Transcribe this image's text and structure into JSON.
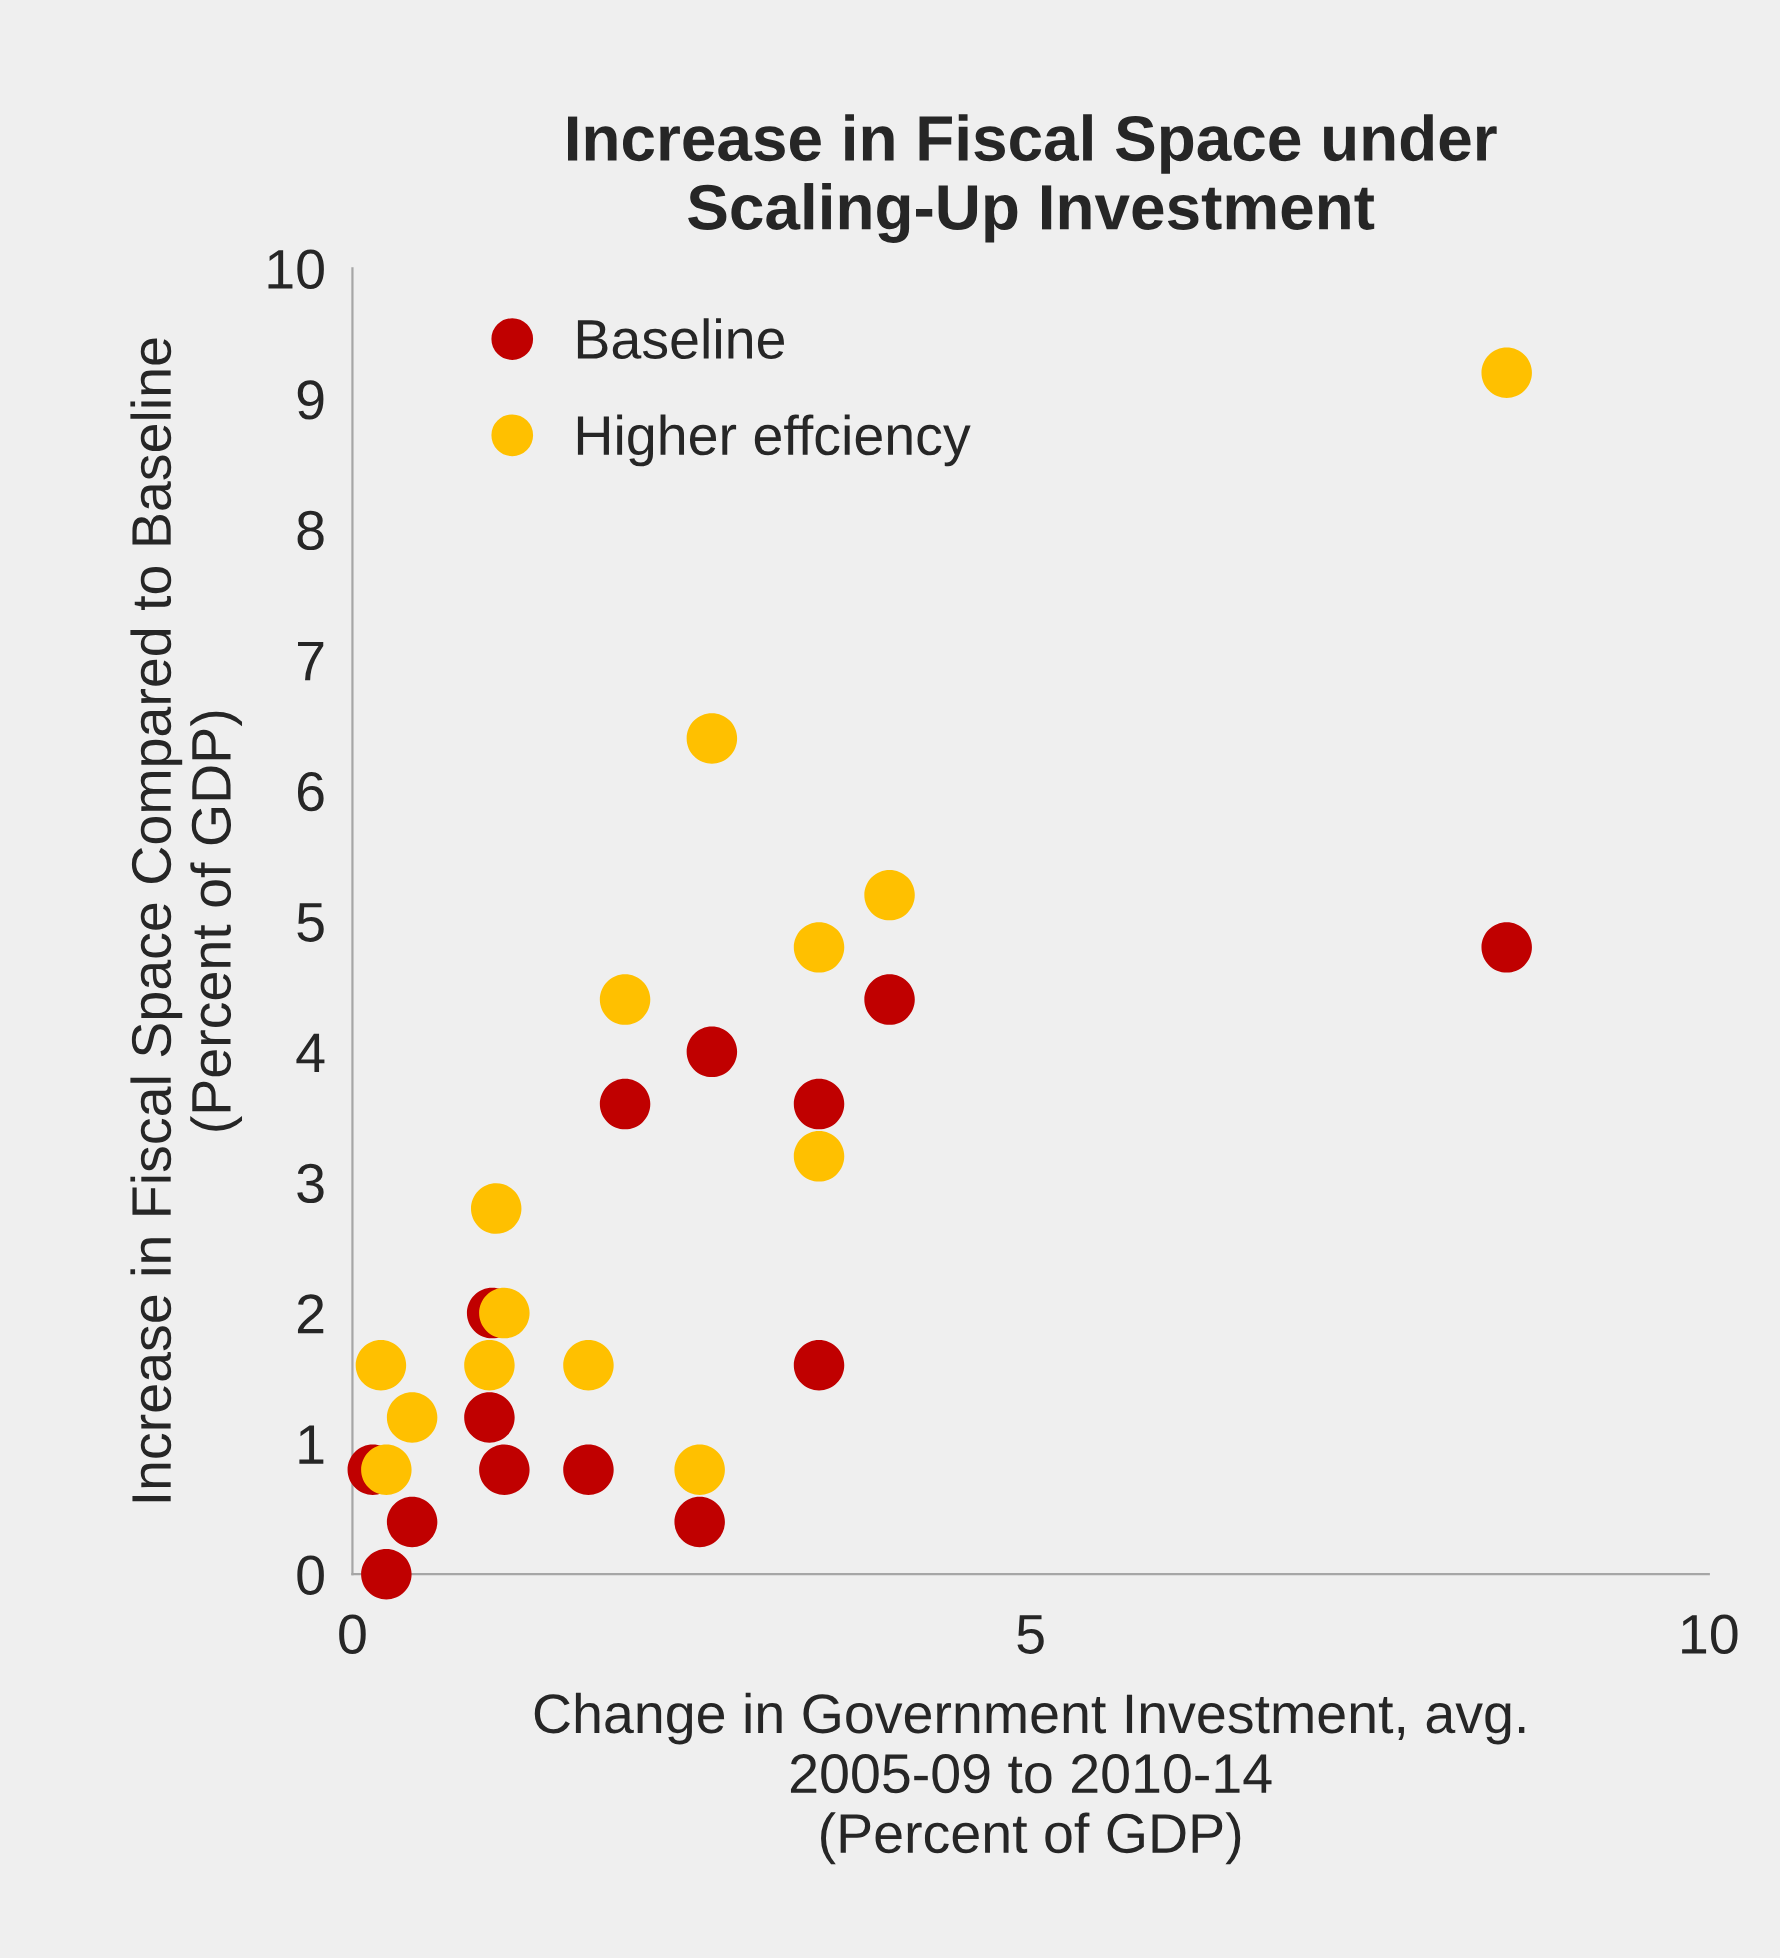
{
  "chart_data": {
    "type": "scatter",
    "title": "Increase in Fiscal Space under\nScaling-Up Investment",
    "xlabel": "Change in Government Investment, avg.\n2005-09 to 2010-14\n(Percent of GDP)",
    "ylabel": "Increase in Fiscal Space Compared to Baseline\n(Percent of GDP)",
    "series": [
      {
        "name": "Baseline",
        "color": "#c00000",
        "x": [
          0.15,
          0.25,
          0.44,
          1.03,
          1.01,
          1.12,
          1.74,
          2.01,
          2.56,
          2.65,
          3.44,
          3.44,
          3.96,
          8.51
        ],
        "values": [
          0.8,
          0,
          0.4,
          2.0,
          1.2,
          0.8,
          0.8,
          3.6,
          0.4,
          4.0,
          3.6,
          1.6,
          4.4,
          4.8
        ]
      },
      {
        "name": "Higher effciency",
        "color": "#ffc000",
        "x": [
          0.21,
          0.25,
          0.44,
          1.06,
          1.01,
          1.12,
          1.74,
          2.01,
          2.56,
          2.65,
          3.44,
          3.44,
          3.96,
          8.51
        ],
        "values": [
          1.6,
          0.8,
          1.2,
          2.8,
          1.6,
          2.0,
          1.6,
          4.4,
          0.8,
          6.4,
          4.8,
          3.2,
          5.2,
          9.2
        ]
      }
    ],
    "xlim": [
      0,
      10
    ],
    "xticks": [
      0,
      5,
      10
    ],
    "ylim": [
      0,
      10
    ],
    "yticks": [
      0,
      1,
      2,
      3,
      4,
      5,
      6,
      7,
      8,
      9,
      10
    ],
    "marker": "circle",
    "legend": "top left",
    "grid": false
  }
}
